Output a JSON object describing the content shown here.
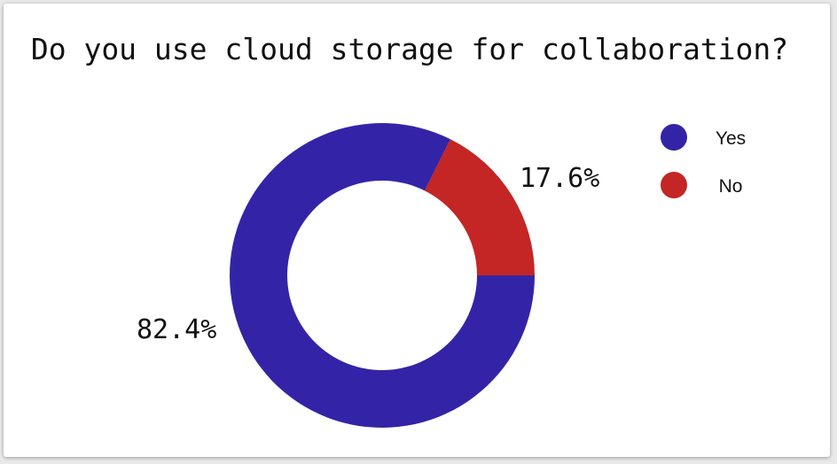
{
  "chart_data": {
    "type": "pie",
    "donut": true,
    "title": "Do you use cloud storage for collaboration?",
    "categories": [
      "Yes",
      "No"
    ],
    "values": [
      82.4,
      17.6
    ],
    "labels": [
      "82.4%",
      "17.6%"
    ],
    "colors": [
      "#3324a7",
      "#c42525"
    ],
    "legend": {
      "position": "top-right",
      "entries": [
        "Yes",
        "No"
      ]
    }
  }
}
